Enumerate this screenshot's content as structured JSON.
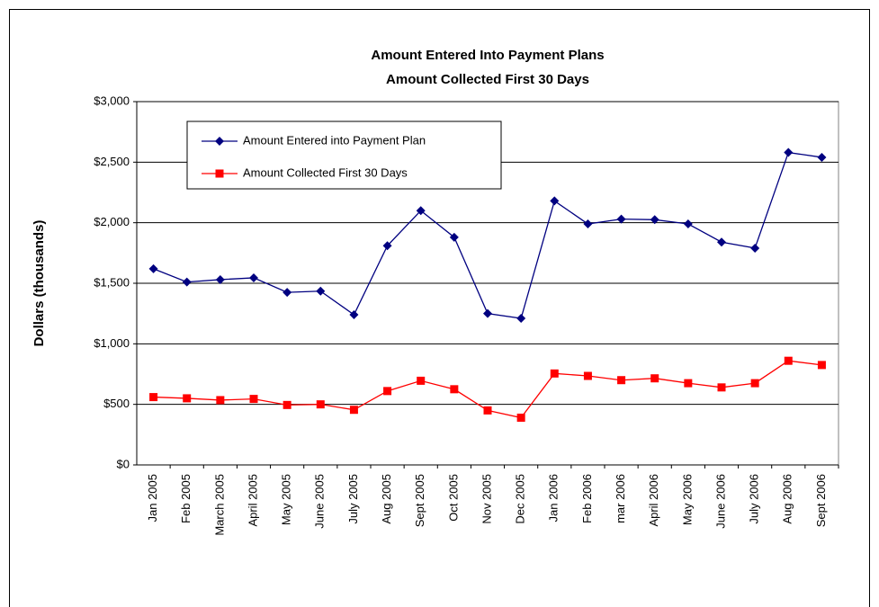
{
  "chart_data": {
    "type": "line",
    "title": [
      "Amount Entered Into Payment Plans",
      "Amount Collected First 30 Days"
    ],
    "y_label": "Dollars (thousands)",
    "categories": [
      "Jan 2005",
      "Feb 2005",
      "March 2005",
      "April 2005",
      "May 2005",
      "June 2005",
      "July 2005",
      "Aug 2005",
      "Sept 2005",
      "Oct 2005",
      "Nov 2005",
      "Dec 2005",
      "Jan 2006",
      "Feb 2006",
      "mar 2006",
      "April 2006",
      "May 2006",
      "June 2006",
      "July 2006",
      "Aug 2006",
      "Sept 2006"
    ],
    "series": [
      {
        "name": "Amount Entered into Payment Plan",
        "color": "#000080",
        "marker": "diamond",
        "values": [
          1620,
          1510,
          1530,
          1545,
          1425,
          1435,
          1240,
          1810,
          2100,
          1880,
          1250,
          1210,
          2180,
          1990,
          2030,
          2025,
          1990,
          1840,
          1790,
          2580,
          2540
        ]
      },
      {
        "name": "Amount Collected First 30 Days",
        "color": "#ff0000",
        "marker": "square",
        "values": [
          560,
          550,
          535,
          545,
          495,
          500,
          455,
          610,
          695,
          625,
          450,
          390,
          755,
          735,
          700,
          715,
          675,
          640,
          675,
          860,
          825
        ]
      }
    ],
    "ylim": [
      0,
      3000
    ],
    "yticks": [
      {
        "value": 0,
        "label": "$0"
      },
      {
        "value": 500,
        "label": "$500"
      },
      {
        "value": 1000,
        "label": "$1,000"
      },
      {
        "value": 1500,
        "label": "$1,500"
      },
      {
        "value": 2000,
        "label": "$2,000"
      },
      {
        "value": 2500,
        "label": "$2,500"
      },
      {
        "value": 3000,
        "label": "$3,000"
      }
    ],
    "grid": true,
    "legend": "upper left"
  }
}
